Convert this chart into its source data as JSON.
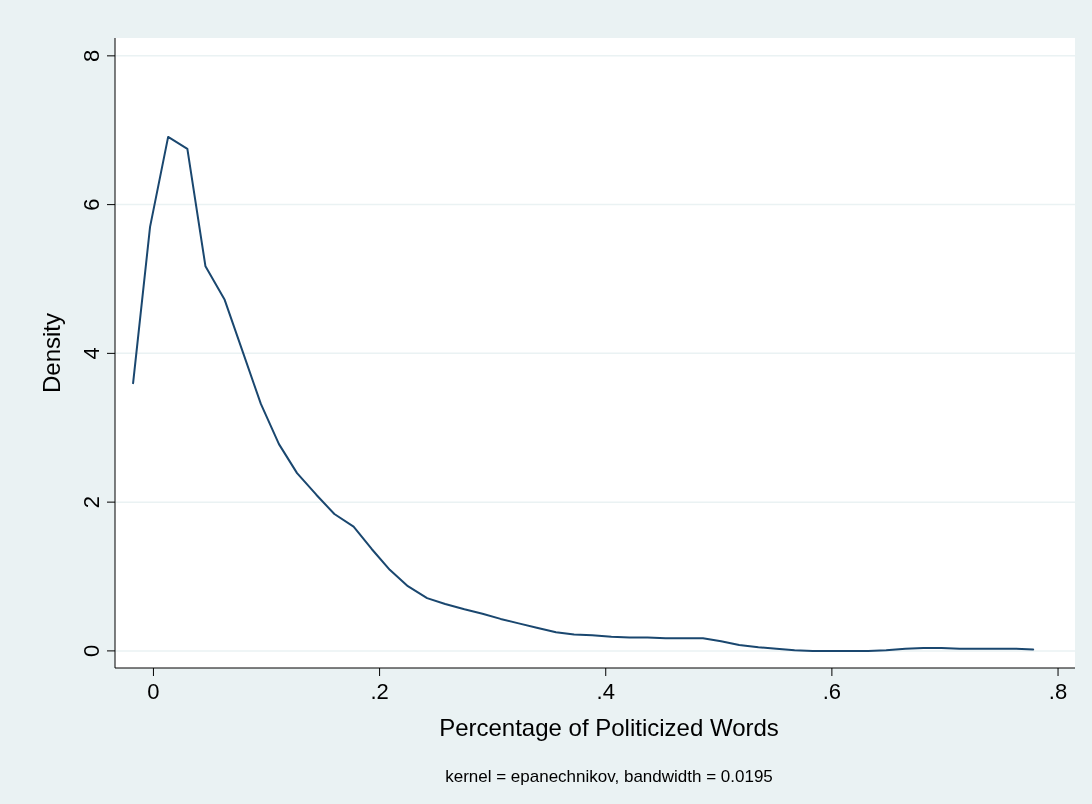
{
  "chart_data": {
    "type": "line",
    "xlabel": "Percentage of Politicized Words",
    "ylabel": "Density",
    "annotations": [
      "kernel = epanechnikov, bandwidth = 0.0195"
    ],
    "x": [
      -0.018,
      -0.003,
      0.013,
      0.03,
      0.046,
      0.063,
      0.079,
      0.095,
      0.111,
      0.127,
      0.144,
      0.16,
      0.177,
      0.193,
      0.209,
      0.225,
      0.242,
      0.258,
      0.275,
      0.291,
      0.307,
      0.323,
      0.339,
      0.356,
      0.372,
      0.388,
      0.405,
      0.421,
      0.437,
      0.453,
      0.47,
      0.486,
      0.502,
      0.518,
      0.535,
      0.551,
      0.567,
      0.583,
      0.6,
      0.616,
      0.632,
      0.648,
      0.665,
      0.681,
      0.697,
      0.713,
      0.73,
      0.746,
      0.762,
      0.778
    ],
    "series": [
      {
        "color": "#1a476f",
        "values": [
          3.6,
          5.7,
          6.91,
          6.75,
          5.17,
          4.72,
          4.02,
          3.32,
          2.78,
          2.39,
          2.1,
          1.84,
          1.67,
          1.37,
          1.09,
          0.87,
          0.71,
          0.63,
          0.56,
          0.5,
          0.43,
          0.37,
          0.31,
          0.25,
          0.22,
          0.21,
          0.19,
          0.18,
          0.18,
          0.17,
          0.17,
          0.17,
          0.13,
          0.08,
          0.05,
          0.03,
          0.01,
          0.0,
          0.0,
          0.0,
          0.0,
          0.01,
          0.03,
          0.04,
          0.04,
          0.03,
          0.03,
          0.03,
          0.03,
          0.02
        ]
      }
    ],
    "xlim": [
      -0.034,
      0.815
    ],
    "ylim": [
      -0.23,
      8.24
    ],
    "xticks": [
      {
        "value": 0,
        "label": "0"
      },
      {
        "value": 0.2,
        "label": ".2"
      },
      {
        "value": 0.4,
        "label": ".4"
      },
      {
        "value": 0.6,
        "label": ".6"
      },
      {
        "value": 0.8,
        "label": ".8"
      }
    ],
    "yticks": [
      0,
      2,
      4,
      6,
      8
    ],
    "grid": "y",
    "marker": "none",
    "line_style": "solid"
  }
}
